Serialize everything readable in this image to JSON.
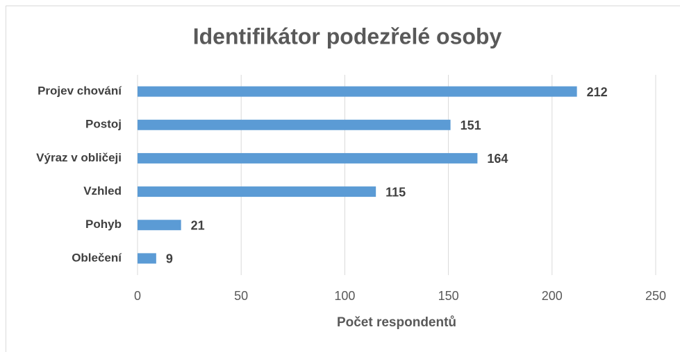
{
  "chart_data": {
    "type": "bar",
    "orientation": "horizontal",
    "title": "Identifikátor podezřelé osoby",
    "categories": [
      "Projev chování",
      "Postoj",
      "Výraz v obličeji",
      "Vzhled",
      "Pohyb",
      "Oblečení"
    ],
    "values": [
      212,
      151,
      164,
      115,
      21,
      9
    ],
    "color": "#5b9bd5",
    "xlabel": "Počet respondentů",
    "xlim": [
      0,
      250
    ],
    "xticks": [
      0,
      50,
      100,
      150,
      200,
      250
    ],
    "grid": true
  }
}
